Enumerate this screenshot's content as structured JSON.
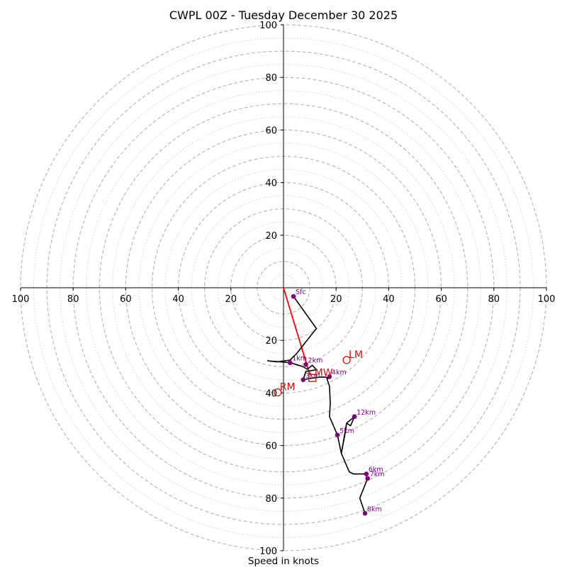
{
  "chart_data": {
    "type": "hodograph",
    "title": "CWPL 00Z - Tuesday December 30 2025",
    "xlabel": "Speed in knots",
    "units": "knots",
    "axis_range": [
      -100,
      100
    ],
    "axis_tick_labels": [
      "100",
      "80",
      "60",
      "40",
      "20",
      "20",
      "40",
      "60",
      "80",
      "100"
    ],
    "y_axis_tick_labels": [
      "100",
      "80",
      "60",
      "40",
      "20",
      "20",
      "40",
      "60",
      "80",
      "100"
    ],
    "ring_major_values": [
      10,
      20,
      30,
      40,
      50,
      60,
      70,
      80,
      90,
      100
    ],
    "ring_minor_values": [
      5,
      15,
      25,
      35,
      45,
      55,
      65,
      75,
      85,
      95
    ],
    "trace": [
      [
        3.8,
        -3.3
      ],
      [
        12.5,
        -15.5
      ],
      [
        5.0,
        -25.0
      ],
      [
        2.5,
        -27.5
      ],
      [
        -2.5,
        -28.2
      ],
      [
        -6.0,
        -27.8
      ],
      [
        2.5,
        -28.5
      ],
      [
        7.5,
        -30.0
      ],
      [
        9.0,
        -31.0
      ],
      [
        11.0,
        -29.5
      ],
      [
        12.5,
        -31.2
      ],
      [
        8.5,
        -31.8
      ],
      [
        7.5,
        -35.0
      ],
      [
        10.0,
        -34.5
      ],
      [
        14.0,
        -34.0
      ],
      [
        16.0,
        -34.0
      ],
      [
        17.5,
        -34.5
      ],
      [
        16.5,
        -34.5
      ],
      [
        17.5,
        -37.5
      ],
      [
        17.8,
        -44.0
      ],
      [
        17.5,
        -49.0
      ],
      [
        20.5,
        -56.0
      ],
      [
        22.0,
        -63.0
      ],
      [
        23.5,
        -55.0
      ],
      [
        24.0,
        -51.5
      ],
      [
        25.5,
        -52.5
      ],
      [
        27.0,
        -49.0
      ],
      [
        24.0,
        -51.5
      ],
      [
        22.0,
        -63.0
      ],
      [
        25.0,
        -70.0
      ],
      [
        26.5,
        -70.8
      ],
      [
        31.5,
        -70.8
      ],
      [
        32.0,
        -72.5
      ],
      [
        29.0,
        -80.0
      ],
      [
        31.0,
        -85.8
      ]
    ],
    "height_markers": [
      {
        "label": "Sfc",
        "u": 3.8,
        "v": -3.3
      },
      {
        "label": "1km",
        "u": 2.5,
        "v": -28.5
      },
      {
        "label": "2km",
        "u": 8.5,
        "v": -29.2
      },
      {
        "label": "3km",
        "u": 7.5,
        "v": -35.0
      },
      {
        "label": "4km",
        "u": 17.5,
        "v": -33.8
      },
      {
        "label": "5km",
        "u": 20.5,
        "v": -56.0
      },
      {
        "label": "12km",
        "u": 27.0,
        "v": -49.0
      },
      {
        "label": "6km",
        "u": 31.5,
        "v": -70.8
      },
      {
        "label": "7km",
        "u": 32.0,
        "v": -72.5
      },
      {
        "label": "8km",
        "u": 31.0,
        "v": -85.8
      }
    ],
    "shear_vector": {
      "u0": 0,
      "v0": 0,
      "u1": 10.0,
      "v1": -33.0
    },
    "storm_motions": [
      {
        "label": "LM",
        "u": 24.0,
        "v": -27.5
      },
      {
        "label": "RM",
        "u": -2.2,
        "v": -39.8
      }
    ],
    "mean_wind": {
      "label": "MW",
      "u": 11.0,
      "v": -34.3
    },
    "colors": {
      "trace": "#000000",
      "marker": "#800080",
      "marker_label": "#800080",
      "storm_motion": "#cc1111",
      "shear": "#ff0000",
      "ring_major": "#b8b8b8",
      "ring_minor": "#d0d0d0",
      "axis": "#000000"
    }
  }
}
